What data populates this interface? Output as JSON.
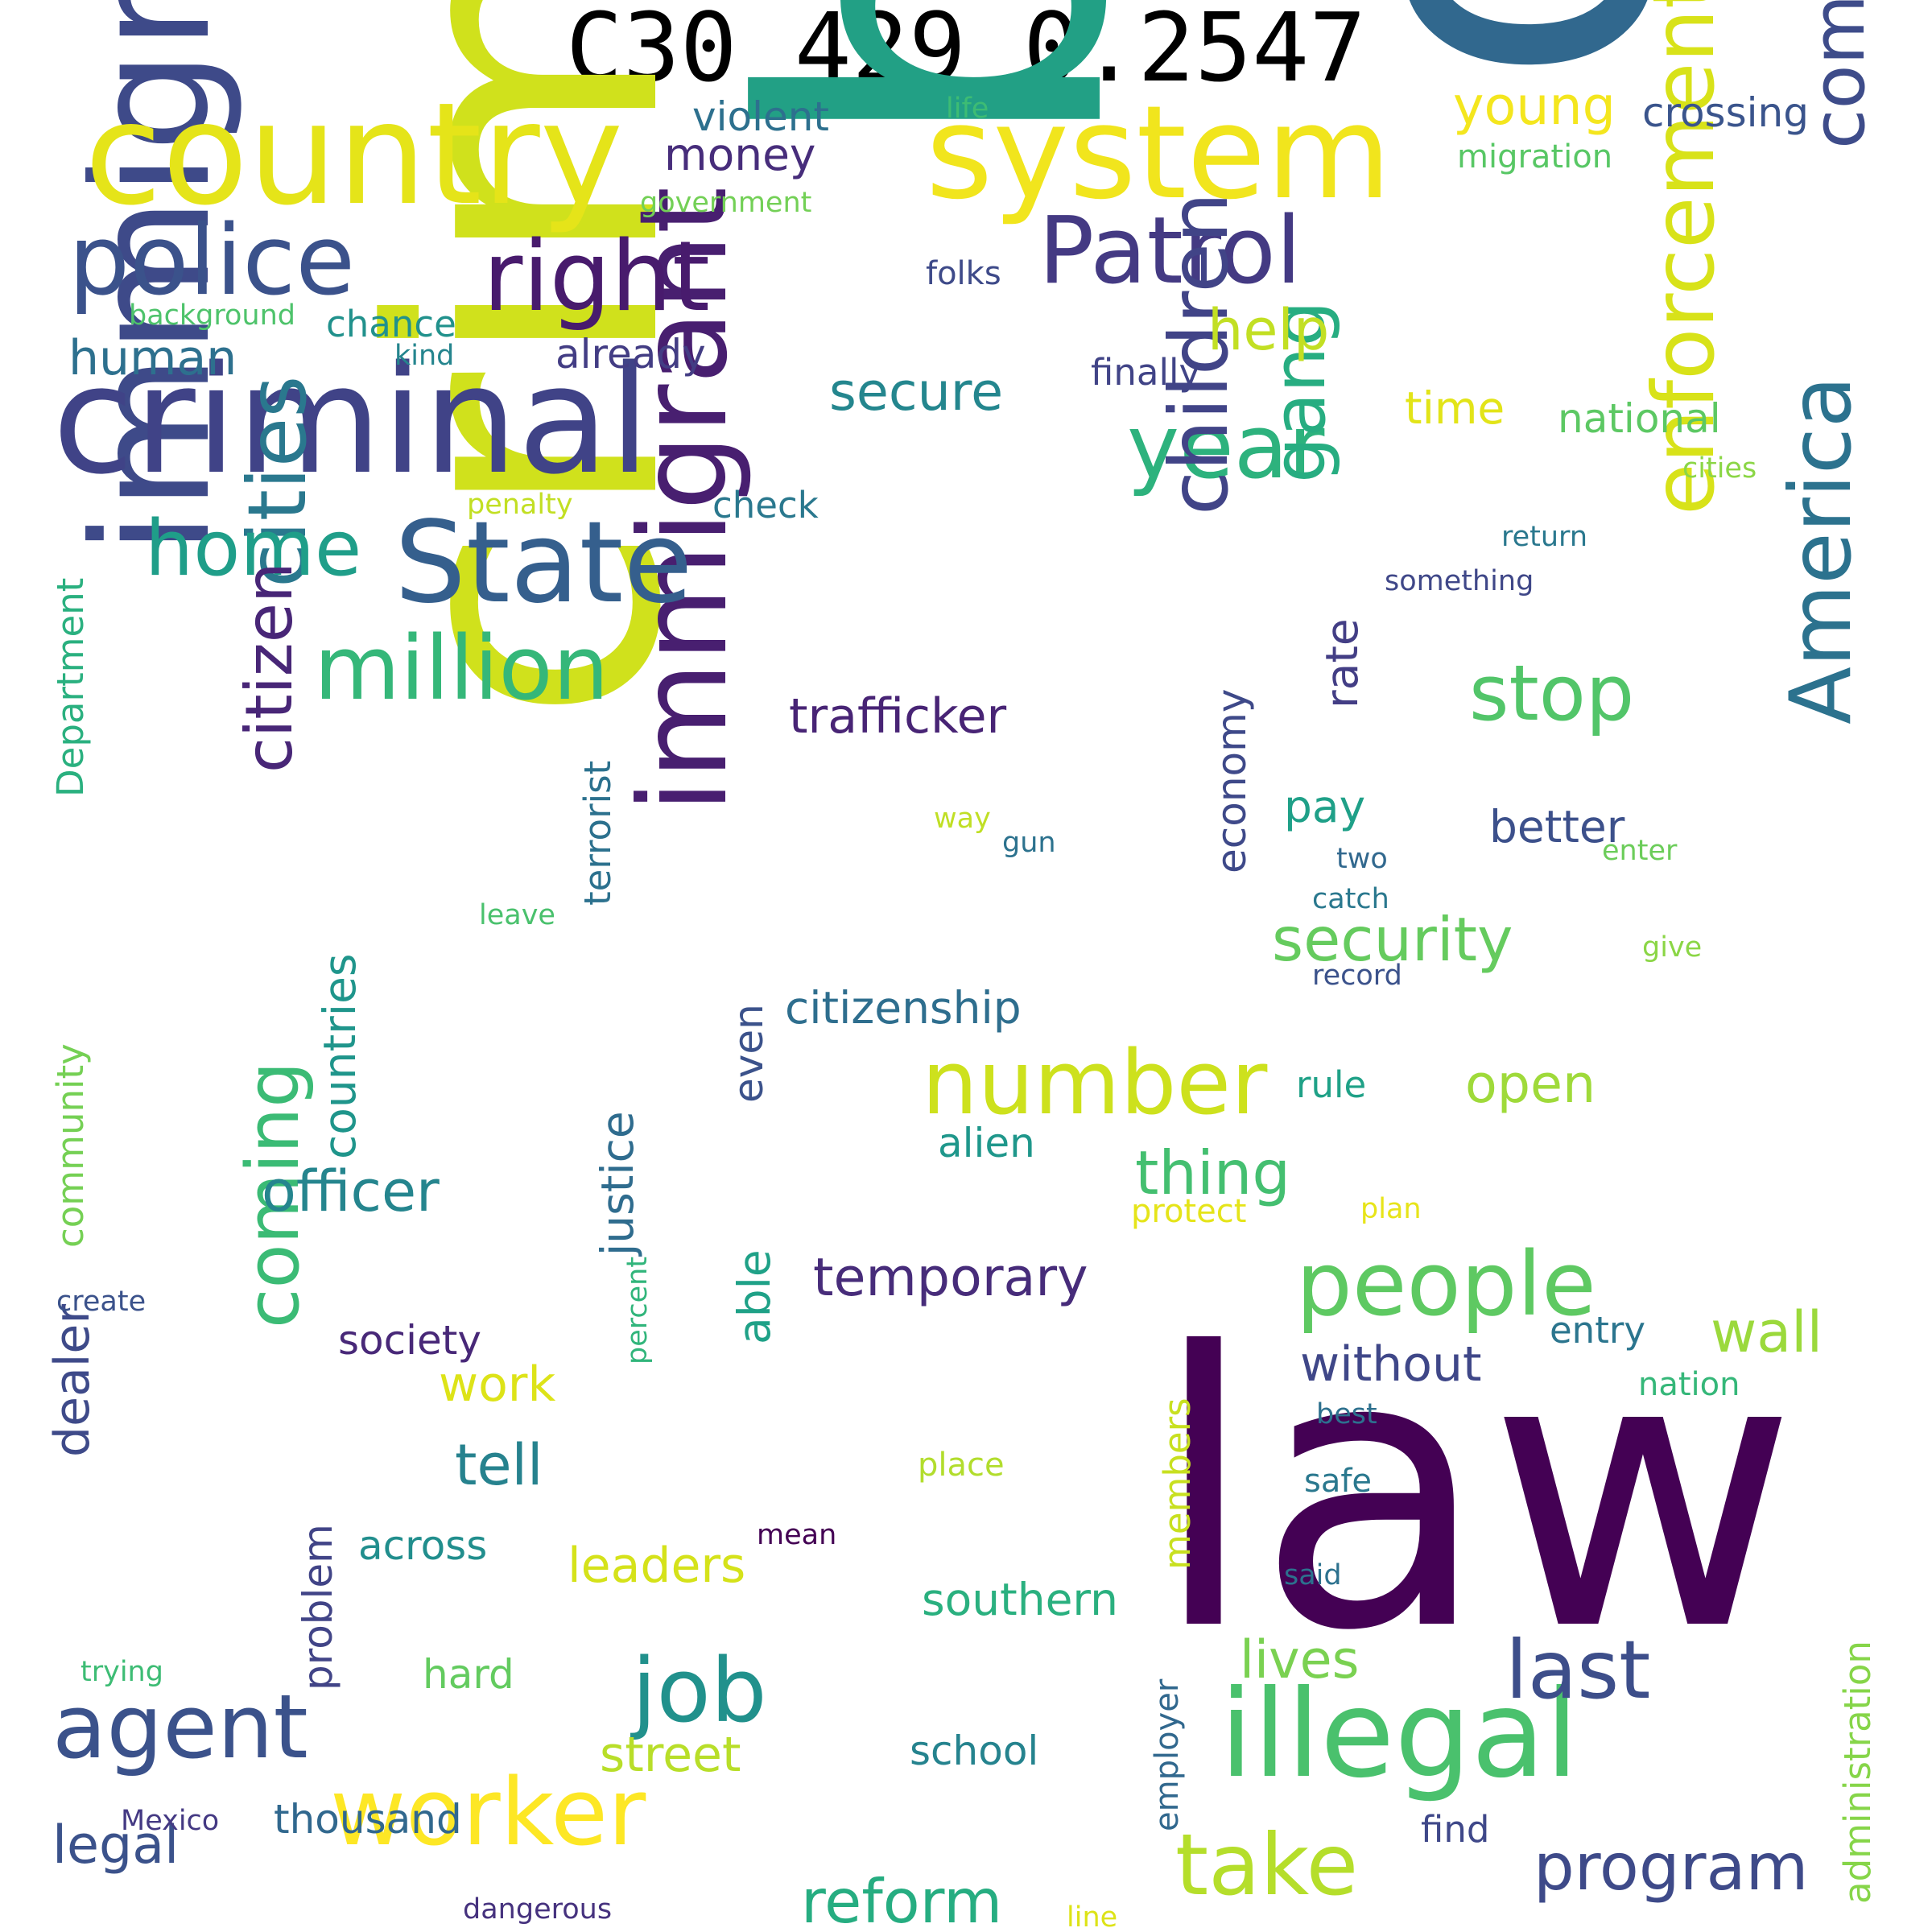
{
  "title": "C30 429 0.2547",
  "words": [
    {
      "text": "border",
      "color": "#22a085"
    },
    {
      "text": "drug",
      "color": "#31688e"
    },
    {
      "text": "crime",
      "color": "#d0e11c"
    },
    {
      "text": "law",
      "color": "#440154"
    },
    {
      "text": "immigration",
      "color": "#3e4a89"
    },
    {
      "text": "criminal",
      "color": "#404387"
    },
    {
      "text": "country",
      "color": "#e5e419"
    },
    {
      "text": "system",
      "color": "#f1e51d"
    },
    {
      "text": "immigrant",
      "color": "#481f70"
    },
    {
      "text": "illegal",
      "color": "#4ac16d"
    },
    {
      "text": "State",
      "color": "#355f8d"
    },
    {
      "text": "police",
      "color": "#3b528b"
    },
    {
      "text": "right",
      "color": "#481b6d"
    },
    {
      "text": "Patrol",
      "color": "#443a83"
    },
    {
      "text": "enforcement",
      "color": "#d8e219"
    },
    {
      "text": "communities",
      "color": "#3e4c8a"
    },
    {
      "text": "America",
      "color": "#2c728e"
    },
    {
      "text": "year",
      "color": "#2db27d"
    },
    {
      "text": "million",
      "color": "#35b779"
    },
    {
      "text": "children",
      "color": "#414487"
    },
    {
      "text": "number",
      "color": "#cde11d"
    },
    {
      "text": "people",
      "color": "#5ec962"
    },
    {
      "text": "worker",
      "color": "#fde725"
    },
    {
      "text": "cities",
      "color": "#2a788e"
    },
    {
      "text": "agent",
      "color": "#3b528b"
    },
    {
      "text": "job",
      "color": "#21918c"
    },
    {
      "text": "home",
      "color": "#1f9e89"
    },
    {
      "text": "citizen",
      "color": "#482677"
    },
    {
      "text": "gang",
      "color": "#27ad81"
    },
    {
      "text": "stop",
      "color": "#52c569"
    },
    {
      "text": "take",
      "color": "#b5de2b"
    },
    {
      "text": "last",
      "color": "#3d4e8a"
    },
    {
      "text": "coming",
      "color": "#3bbb75"
    },
    {
      "text": "program",
      "color": "#3e4a89"
    },
    {
      "text": "reform",
      "color": "#26ad81"
    },
    {
      "text": "security",
      "color": "#65cb5e"
    },
    {
      "text": "thing",
      "color": "#44bf70"
    },
    {
      "text": "officer",
      "color": "#25858e"
    },
    {
      "text": "trafficker",
      "color": "#482475"
    },
    {
      "text": "temporary",
      "color": "#472c7a"
    },
    {
      "text": "countries",
      "color": "#1f958b"
    },
    {
      "text": "help",
      "color": "#c2df23"
    },
    {
      "text": "secure",
      "color": "#24868e"
    },
    {
      "text": "wall",
      "color": "#9bd93c"
    },
    {
      "text": "justice",
      "color": "#2f6c8e"
    },
    {
      "text": "legal",
      "color": "#3b528b"
    },
    {
      "text": "young",
      "color": "#f4e61e"
    },
    {
      "text": "human",
      "color": "#2d708e"
    },
    {
      "text": "dealer",
      "color": "#3e4a89"
    },
    {
      "text": "problem",
      "color": "#414487"
    },
    {
      "text": "leaders",
      "color": "#d5e21a"
    },
    {
      "text": "tell",
      "color": "#26828e"
    },
    {
      "text": "open",
      "color": "#9fda3a"
    },
    {
      "text": "lives",
      "color": "#7ad151"
    },
    {
      "text": "street",
      "color": "#b8de29"
    },
    {
      "text": "without",
      "color": "#3f4788"
    },
    {
      "text": "better",
      "color": "#3c508b"
    },
    {
      "text": "economy",
      "color": "#3e4989"
    },
    {
      "text": "rate",
      "color": "#433e85"
    },
    {
      "text": "time",
      "color": "#e2e418"
    },
    {
      "text": "crossing",
      "color": "#3a548c"
    },
    {
      "text": "citizenship",
      "color": "#2e6e8e"
    },
    {
      "text": "able",
      "color": "#1fa187"
    },
    {
      "text": "even",
      "color": "#3b528b"
    },
    {
      "text": "work",
      "color": "#dde318"
    },
    {
      "text": "terrorist",
      "color": "#2c718e"
    },
    {
      "text": "money",
      "color": "#472d7b"
    },
    {
      "text": "violent",
      "color": "#2d708e"
    },
    {
      "text": "thousand",
      "color": "#31688e"
    },
    {
      "text": "southern",
      "color": "#2ab07f"
    },
    {
      "text": "alien",
      "color": "#1f978b"
    },
    {
      "text": "school",
      "color": "#25838e"
    },
    {
      "text": "national",
      "color": "#5cc863"
    },
    {
      "text": "society",
      "color": "#482878"
    },
    {
      "text": "across",
      "color": "#218e8d"
    },
    {
      "text": "hard",
      "color": "#63cb5f"
    },
    {
      "text": "chance",
      "color": "#21918c"
    },
    {
      "text": "already",
      "color": "#433d84"
    },
    {
      "text": "finally",
      "color": "#414487"
    },
    {
      "text": "check",
      "color": "#2a788e"
    },
    {
      "text": "pay",
      "color": "#1fa088"
    },
    {
      "text": "entry",
      "color": "#2b758e"
    },
    {
      "text": "rule",
      "color": "#1fa187"
    },
    {
      "text": "Department",
      "color": "#2ab07f"
    },
    {
      "text": "community",
      "color": "#75d054"
    },
    {
      "text": "members",
      "color": "#c8e020"
    },
    {
      "text": "administration",
      "color": "#86d549"
    },
    {
      "text": "employer",
      "color": "#31688e"
    },
    {
      "text": "find",
      "color": "#3f4889"
    },
    {
      "text": "folks",
      "color": "#3e4a89"
    },
    {
      "text": "migration",
      "color": "#58c765"
    },
    {
      "text": "government",
      "color": "#73d056"
    },
    {
      "text": "background",
      "color": "#4ec36b"
    },
    {
      "text": "kind",
      "color": "#25858e"
    },
    {
      "text": "life",
      "color": "#3dbc74"
    },
    {
      "text": "penalty",
      "color": "#c2df23"
    },
    {
      "text": "cities",
      "color": "#8bd646"
    },
    {
      "text": "return",
      "color": "#2a788e"
    },
    {
      "text": "something",
      "color": "#3f4788"
    },
    {
      "text": "way",
      "color": "#c0df25"
    },
    {
      "text": "gun",
      "color": "#2c728e"
    },
    {
      "text": "two",
      "color": "#31688e"
    },
    {
      "text": "enter",
      "color": "#6ccd5a"
    },
    {
      "text": "catch",
      "color": "#2a788e"
    },
    {
      "text": "leave",
      "color": "#4ac16d"
    },
    {
      "text": "give",
      "color": "#8bd646"
    },
    {
      "text": "record",
      "color": "#3b528b"
    },
    {
      "text": "protect",
      "color": "#e5e419"
    },
    {
      "text": "plan",
      "color": "#e7e419"
    },
    {
      "text": "create",
      "color": "#3b528b"
    },
    {
      "text": "percent",
      "color": "#31b57b"
    },
    {
      "text": "nation",
      "color": "#35b779"
    },
    {
      "text": "best",
      "color": "#2d708e"
    },
    {
      "text": "safe",
      "color": "#2a788e"
    },
    {
      "text": "place",
      "color": "#b2dd2d"
    },
    {
      "text": "mean",
      "color": "#440154"
    },
    {
      "text": "said",
      "color": "#2c718e"
    },
    {
      "text": "trying",
      "color": "#3dbc74"
    },
    {
      "text": "Mexico",
      "color": "#443983"
    },
    {
      "text": "dangerous",
      "color": "#46327e"
    },
    {
      "text": "line",
      "color": "#dde318"
    }
  ]
}
